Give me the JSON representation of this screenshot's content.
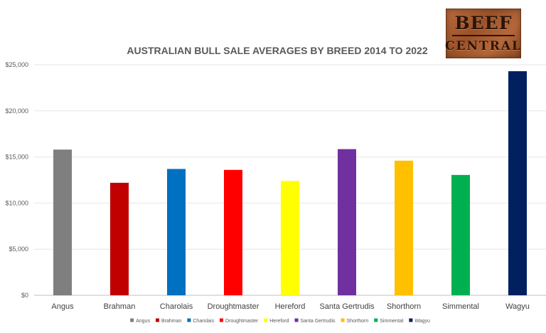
{
  "logo": {
    "line1": "BEEF",
    "line2": "CENTRAL"
  },
  "chart_data": {
    "type": "bar",
    "title": "AUSTRALIAN BULL SALE AVERAGES BY BREED 2014 TO 2022",
    "xlabel": "",
    "ylabel": "",
    "ylim": [
      0,
      25000
    ],
    "yticks": [
      0,
      5000,
      10000,
      15000,
      20000,
      25000
    ],
    "ytick_labels": [
      "$0",
      "$5,000",
      "$10,000",
      "$15,000",
      "$20,000",
      "$25,000"
    ],
    "grid": true,
    "legend_position": "bottom",
    "categories": [
      "Angus",
      "Brahman",
      "Charolais",
      "Droughtmaster",
      "Hereford",
      "Santa Gertrudis",
      "Shorthorn",
      "Simmental",
      "Wagyu"
    ],
    "values": [
      15800,
      12200,
      13700,
      13600,
      12400,
      15850,
      14600,
      13050,
      24300
    ],
    "colors": [
      "#7f7f7f",
      "#c00000",
      "#0070c0",
      "#ff0000",
      "#ffff00",
      "#7030a0",
      "#ffc000",
      "#00b050",
      "#002060"
    ]
  }
}
